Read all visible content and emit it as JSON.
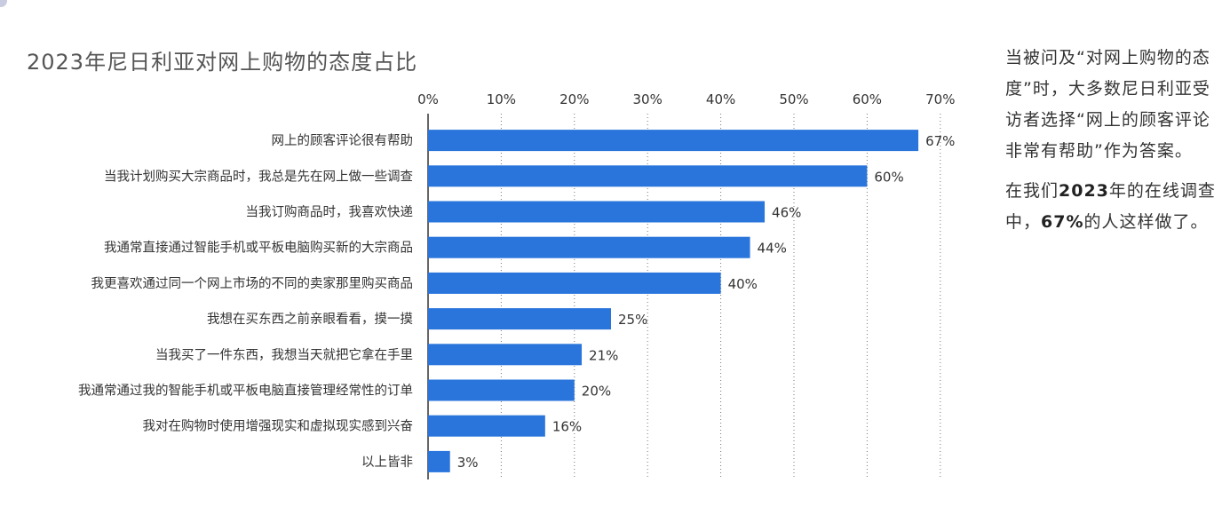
{
  "title": "2023年尼日利亚对网上购物的态度占比",
  "note": {
    "p1": "当被问及“对网上购物的态度”时，大多数尼日利亚受访者选择“网上的顾客评论非常有帮助”作为答案。",
    "p2_a": "在我们",
    "p2_b": "2023",
    "p2_c": "年的在线调查中，",
    "p2_d": "67%",
    "p2_e": "的人这样做了。"
  },
  "chart_data": {
    "type": "bar",
    "orientation": "horizontal",
    "title": "2023年尼日利亚对网上购物的态度占比",
    "categories": [
      "网上的顾客评论很有帮助",
      "当我计划购买大宗商品时，我总是先在网上做一些调查",
      "当我订购商品时，我喜欢快递",
      "我通常直接通过智能手机或平板电脑购买新的大宗商品",
      "我更喜欢通过同一个网上市场的不同的卖家那里购买商品",
      "我想在买东西之前亲眼看看，摸一摸",
      "当我买了一件东西，我想当天就把它拿在手里",
      "我通常通过我的智能手机或平板电脑直接管理经常性的订单",
      "我对在购物时使用增强现实和虚拟现实感到兴奋",
      "以上皆非"
    ],
    "values": [
      67,
      60,
      46,
      44,
      40,
      25,
      21,
      20,
      16,
      3
    ],
    "value_labels": [
      "67%",
      "60%",
      "46%",
      "44%",
      "40%",
      "25%",
      "21%",
      "20%",
      "16%",
      "3%"
    ],
    "xticks": [
      "0%",
      "10%",
      "20%",
      "30%",
      "40%",
      "50%",
      "60%",
      "70%"
    ],
    "xlim": [
      0,
      70
    ],
    "grid": true,
    "axis_position": "top",
    "bar_color": "#2a75dc"
  }
}
